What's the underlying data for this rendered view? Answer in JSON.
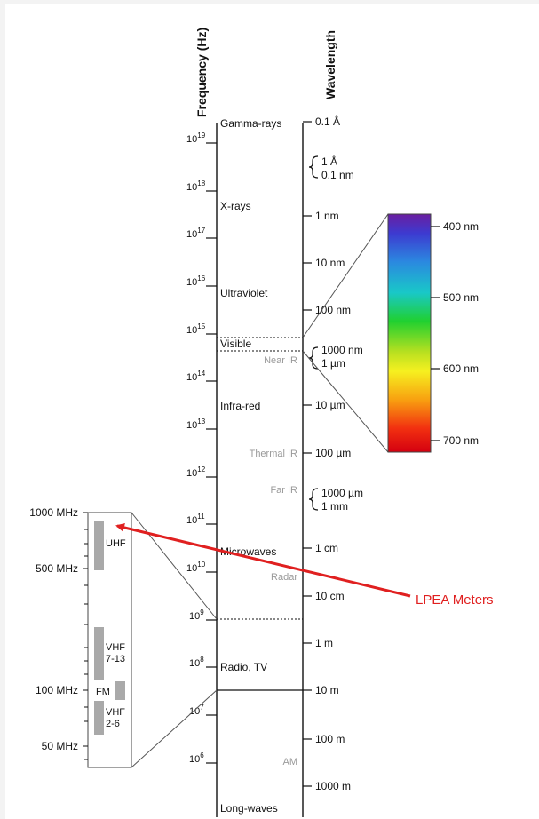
{
  "axes": {
    "frequency_title": "Frequency (Hz)",
    "wavelength_title": "Wavelength"
  },
  "frequency_ticks": [
    {
      "base": "10",
      "exp": "19"
    },
    {
      "base": "10",
      "exp": "18"
    },
    {
      "base": "10",
      "exp": "17"
    },
    {
      "base": "10",
      "exp": "16"
    },
    {
      "base": "10",
      "exp": "15"
    },
    {
      "base": "10",
      "exp": "14"
    },
    {
      "base": "10",
      "exp": "13"
    },
    {
      "base": "10",
      "exp": "12"
    },
    {
      "base": "10",
      "exp": "11"
    },
    {
      "base": "10",
      "exp": "10"
    },
    {
      "base": "10",
      "exp": "9"
    },
    {
      "base": "10",
      "exp": "8"
    },
    {
      "base": "10",
      "exp": "7"
    },
    {
      "base": "10",
      "exp": "6"
    }
  ],
  "wavelength_ticks": {
    "w01A": "0.1 Å",
    "w1A": "1 Å",
    "w01nm": "0.1 nm",
    "w1nm": "1 nm",
    "w10nm": "10 nm",
    "w100nm": "100 nm",
    "w1000nm": "1000 nm",
    "w1um": "1 µm",
    "w10um": "10 µm",
    "w100um": "100 µm",
    "w1000um": "1000 µm",
    "w1mm": "1 mm",
    "w1cm": "1 cm",
    "w10cm": "10 cm",
    "w1m": "1 m",
    "w10m": "10 m",
    "w100m": "100 m",
    "w1000m": "1000 m"
  },
  "regions": {
    "gamma": "Gamma-rays",
    "xray": "X-rays",
    "uv": "Ultraviolet",
    "visible": "Visible",
    "ir": "Infra-red",
    "microwave": "Microwaves",
    "radio": "Radio, TV",
    "longwave": "Long-waves"
  },
  "subregions": {
    "near_ir": "Near IR",
    "thermal_ir": "Thermal IR",
    "far_ir": "Far IR",
    "radar": "Radar",
    "am": "AM"
  },
  "visible_scale": {
    "l400": "400 nm",
    "l500": "500 nm",
    "l600": "600 nm",
    "l700": "700 nm"
  },
  "radio_scale": {
    "m1000": "1000 MHz",
    "m500": "500 MHz",
    "m100": "100 MHz",
    "m50": "50 MHz",
    "uhf": "UHF",
    "vhf_high_1": "VHF",
    "vhf_high_2": "7-13",
    "fm": "FM",
    "vhf_low_1": "VHF",
    "vhf_low_2": "2-6"
  },
  "annotation": {
    "label": "LPEA Meters",
    "color": "#e02020"
  }
}
